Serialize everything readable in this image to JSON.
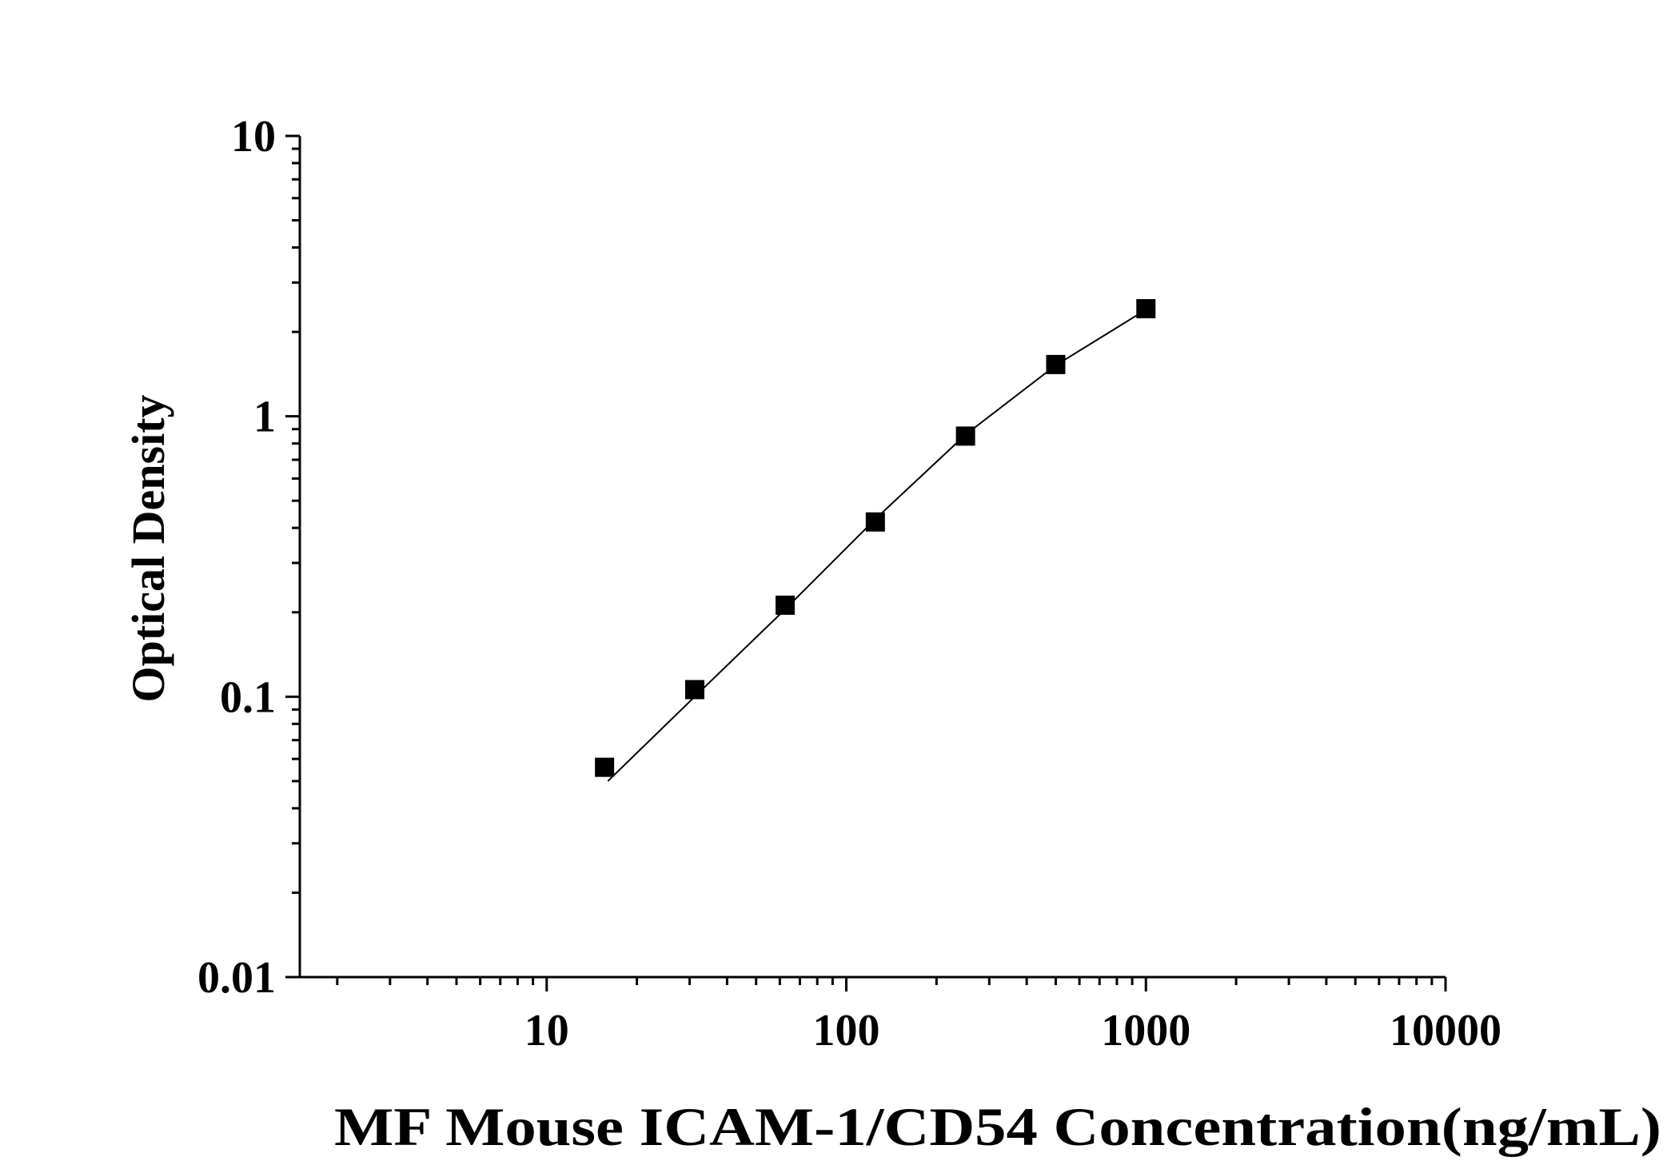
{
  "chart_data": {
    "type": "scatter",
    "title": "",
    "xlabel": "MF Mouse ICAM-1/CD54 Concentration(ng/mL)",
    "ylabel": "Optical Density",
    "x_scale": "log",
    "y_scale": "log",
    "xlim": [
      1.5,
      10000
    ],
    "ylim": [
      0.01,
      10
    ],
    "x_ticks": [
      {
        "value": 10,
        "label": "10"
      },
      {
        "value": 100,
        "label": "100"
      },
      {
        "value": 1000,
        "label": "1000"
      },
      {
        "value": 10000,
        "label": "10000"
      }
    ],
    "y_ticks": [
      {
        "value": 0.01,
        "label": "0.01"
      },
      {
        "value": 0.1,
        "label": "0.1"
      },
      {
        "value": 1,
        "label": "1"
      },
      {
        "value": 10,
        "label": "10"
      }
    ],
    "grid": false,
    "legend": "none",
    "marker": "square",
    "color": "#000000",
    "series": [
      {
        "points": [
          {
            "x": 15.6,
            "y": 0.056
          },
          {
            "x": 31.2,
            "y": 0.106
          },
          {
            "x": 62.5,
            "y": 0.212
          },
          {
            "x": 125,
            "y": 0.42
          },
          {
            "x": 250,
            "y": 0.85
          },
          {
            "x": 500,
            "y": 1.53
          },
          {
            "x": 1000,
            "y": 2.42
          }
        ],
        "fit": [
          {
            "x": 16,
            "y": 0.05
          },
          {
            "x": 31.2,
            "y": 0.1
          },
          {
            "x": 62.5,
            "y": 0.205
          },
          {
            "x": 125,
            "y": 0.43
          },
          {
            "x": 250,
            "y": 0.86
          },
          {
            "x": 500,
            "y": 1.52
          },
          {
            "x": 1000,
            "y": 2.4
          }
        ]
      }
    ]
  }
}
